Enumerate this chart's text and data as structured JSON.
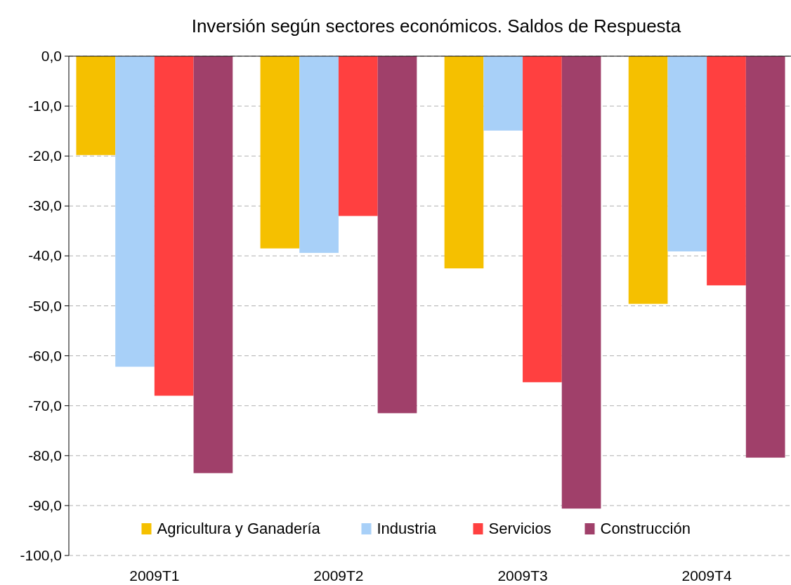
{
  "chart_data": {
    "type": "bar",
    "title": "Inversión según sectores económicos. Saldos de Respuesta",
    "categories": [
      "2009T1",
      "2009T2",
      "2009T3",
      "2009T4"
    ],
    "series": [
      {
        "name": "Agricultura y Ganadería",
        "color": "#f5c000",
        "values": [
          -19.8,
          -38.5,
          -42.5,
          -49.6
        ]
      },
      {
        "name": "Industria",
        "color": "#a8d0f8",
        "values": [
          -62.2,
          -39.4,
          -14.9,
          -39.1
        ]
      },
      {
        "name": "Servicios",
        "color": "#ff4040",
        "values": [
          -68.0,
          -32.0,
          -65.3,
          -45.9
        ]
      },
      {
        "name": "Construcción",
        "color": "#a0406a",
        "values": [
          -83.5,
          -71.5,
          -90.6,
          -80.4
        ]
      }
    ],
    "ylim": [
      -100,
      0
    ],
    "yticks": [
      {
        "value": 0,
        "label": "0,0"
      },
      {
        "value": -10,
        "label": "-10,0"
      },
      {
        "value": -20,
        "label": "-20,0"
      },
      {
        "value": -30,
        "label": "-30,0"
      },
      {
        "value": -40,
        "label": "-40,0"
      },
      {
        "value": -50,
        "label": "-50,0"
      },
      {
        "value": -60,
        "label": "-60,0"
      },
      {
        "value": -70,
        "label": "-70,0"
      },
      {
        "value": -80,
        "label": "-80,0"
      },
      {
        "value": -90,
        "label": "-90,0"
      },
      {
        "value": -100,
        "label": "-100,0"
      }
    ],
    "grid": "y",
    "legend": "bottom"
  }
}
